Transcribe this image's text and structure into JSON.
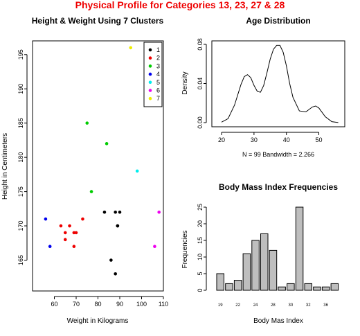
{
  "page": {
    "title": "Physical Profile for Categories 13, 23, 27 & 28",
    "title_color": "#ee0000"
  },
  "chart_data": [
    {
      "type": "scatter",
      "title": "Height & Weight Using 7 Clusters",
      "xlabel": "Weight in Kilograms",
      "ylabel": "Height in Centimeters",
      "xlim": [
        50,
        110
      ],
      "ylim": [
        160.5,
        197
      ],
      "xticks": [
        "60",
        "70",
        "80",
        "90",
        "100",
        "110"
      ],
      "yticks": [
        "165",
        "170",
        "175",
        "180",
        "185",
        "190",
        "195"
      ],
      "xtick_values": [
        60,
        70,
        80,
        90,
        100,
        110
      ],
      "ytick_values": [
        165,
        170,
        175,
        180,
        185,
        190,
        195
      ],
      "legend": {
        "placement": "top-right",
        "entries": [
          "1",
          "2",
          "3",
          "4",
          "5",
          "6",
          "7"
        ]
      },
      "colors": [
        "#000000",
        "#ee0000",
        "#00cc00",
        "#0000ee",
        "#00eeee",
        "#ee00ee",
        "#eeee00"
      ],
      "series": [
        {
          "name": "1",
          "points": [
            [
              83,
              172
            ],
            [
              88,
              172
            ],
            [
              90,
              172
            ],
            [
              89,
              170
            ],
            [
              89,
              170
            ],
            [
              86,
              165
            ],
            [
              88,
              163
            ]
          ]
        },
        {
          "name": "2",
          "points": [
            [
              63,
              170
            ],
            [
              67,
              170
            ],
            [
              73,
              171
            ],
            [
              65,
              169
            ],
            [
              69,
              169
            ],
            [
              70,
              169
            ],
            [
              65,
              168
            ],
            [
              69,
              167
            ]
          ]
        },
        {
          "name": "3",
          "points": [
            [
              75,
              185
            ],
            [
              84,
              182
            ],
            [
              77,
              175
            ]
          ]
        },
        {
          "name": "4",
          "points": [
            [
              56,
              171
            ],
            [
              58,
              167
            ]
          ]
        },
        {
          "name": "5",
          "points": [
            [
              98,
              178
            ]
          ]
        },
        {
          "name": "6",
          "points": [
            [
              108,
              172
            ],
            [
              106,
              167
            ]
          ]
        },
        {
          "name": "7",
          "points": [
            [
              95,
              196
            ]
          ]
        }
      ]
    },
    {
      "type": "line",
      "title": "Age Distribution",
      "ylabel": "Density",
      "caption": "N = 99   Bandwidth = 2.266",
      "xlim": [
        17,
        58
      ],
      "ylim": [
        0,
        0.08
      ],
      "xticks": [
        "20",
        "30",
        "40",
        "50"
      ],
      "yticks": [
        "0.00",
        "0.04",
        "0.08"
      ],
      "xtick_values": [
        20,
        30,
        40,
        50
      ],
      "ytick_values": [
        0,
        0.04,
        0.08
      ],
      "x": [
        20,
        22,
        24,
        26,
        27,
        28,
        29,
        30,
        31,
        32,
        33,
        34,
        35,
        36,
        37,
        38,
        39,
        40,
        41,
        42,
        44,
        46,
        48,
        49,
        50,
        52,
        54,
        56
      ],
      "y": [
        0.0005,
        0.004,
        0.018,
        0.039,
        0.047,
        0.049,
        0.046,
        0.038,
        0.032,
        0.031,
        0.038,
        0.051,
        0.065,
        0.075,
        0.079,
        0.079,
        0.072,
        0.058,
        0.04,
        0.026,
        0.012,
        0.011,
        0.016,
        0.017,
        0.015,
        0.006,
        0.001,
        0.0001
      ]
    },
    {
      "type": "bar",
      "title": "Body Mass Index Frequencies",
      "xlabel": "Body Mas Index",
      "ylabel": "Frequencies",
      "ylim": [
        0,
        25
      ],
      "yticks": [
        "0",
        "5",
        "10",
        "15",
        "20",
        "25"
      ],
      "ytick_values": [
        0,
        5,
        10,
        15,
        20,
        25
      ],
      "categories": [
        "19",
        "",
        "22",
        "",
        "24",
        "",
        "28",
        "",
        "30",
        "",
        "32",
        "",
        "36",
        ""
      ],
      "values": [
        5,
        2,
        3,
        11,
        15,
        17,
        12,
        1,
        2,
        25,
        2,
        1,
        1,
        2
      ],
      "bar_color": "#bebebe"
    }
  ]
}
